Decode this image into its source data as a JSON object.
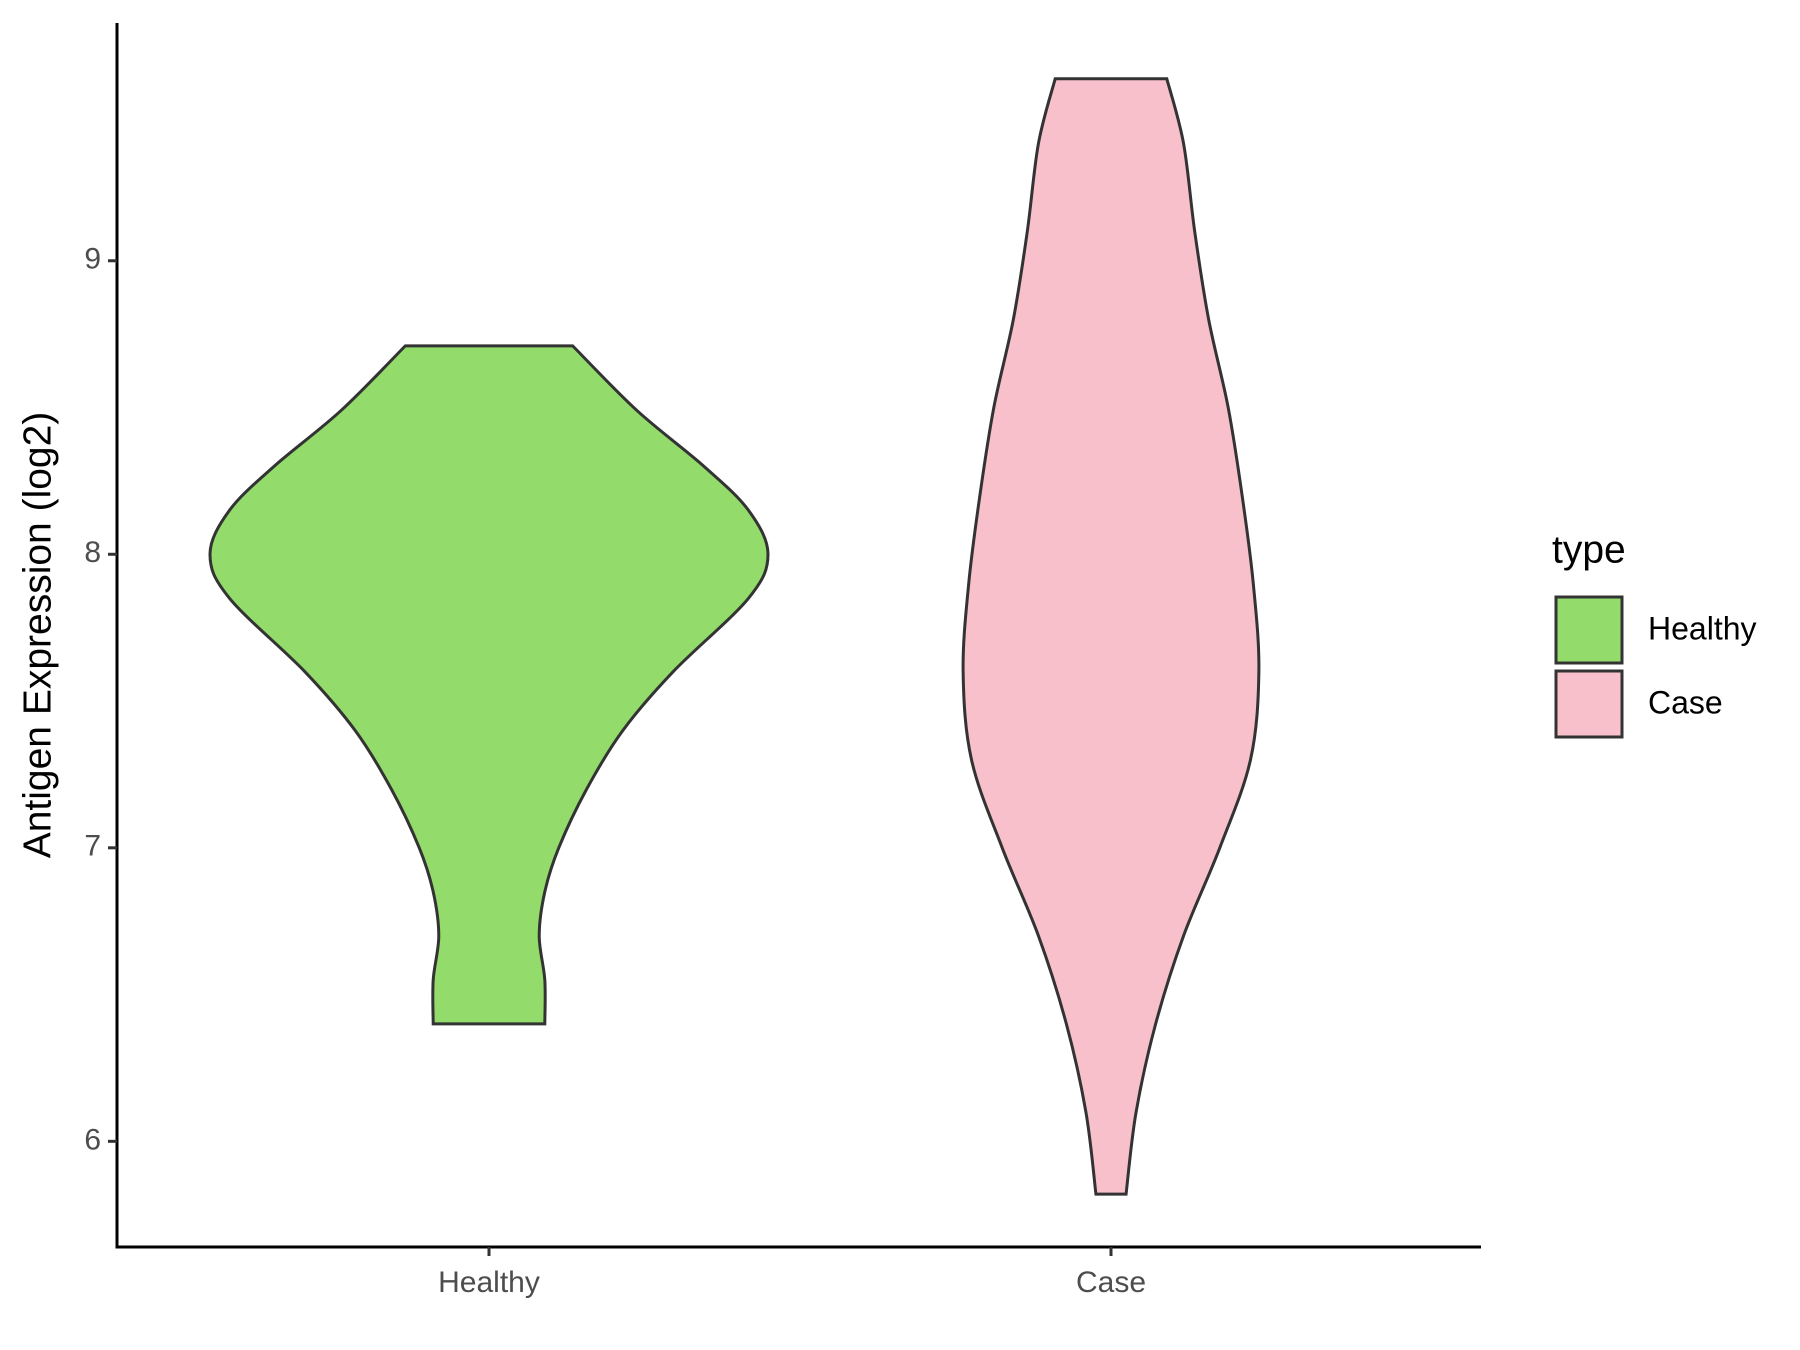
{
  "chart_data": {
    "type": "violin",
    "ylabel": "Antigen Expression (log2)",
    "categories": [
      "Healthy",
      "Case"
    ],
    "legend_title": "type",
    "legend": "right",
    "ylim": [
      5.64,
      9.81
    ],
    "yticks": [
      6,
      7,
      8,
      9
    ],
    "series": [
      {
        "name": "Healthy",
        "color": "#93dc6b",
        "y": [
          8.71,
          8.49,
          8.3,
          8.15,
          8.0,
          7.85,
          7.6,
          7.4,
          7.2,
          7.0,
          6.85,
          6.7,
          6.55,
          6.4
        ],
        "density": [
          0.3,
          0.53,
          0.77,
          0.93,
          1.0,
          0.93,
          0.66,
          0.48,
          0.35,
          0.25,
          0.2,
          0.18,
          0.2,
          0.2
        ]
      },
      {
        "name": "Case",
        "color": "#f7c0cb",
        "y": [
          9.62,
          9.4,
          9.1,
          8.8,
          8.5,
          8.2,
          7.9,
          7.6,
          7.3,
          7.0,
          6.7,
          6.4,
          6.1,
          5.82
        ],
        "density": [
          0.2,
          0.26,
          0.3,
          0.35,
          0.42,
          0.47,
          0.51,
          0.53,
          0.5,
          0.39,
          0.26,
          0.16,
          0.09,
          0.054
        ]
      }
    ]
  }
}
